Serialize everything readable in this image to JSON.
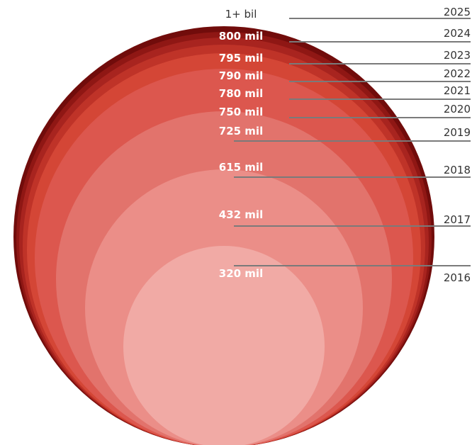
{
  "chart_data": {
    "type": "nested-bubble",
    "title": "",
    "series": [
      {
        "year": "2016",
        "label": "320 mil",
        "value": 320,
        "color": "#f1aaa5"
      },
      {
        "year": "2017",
        "label": "432 mil",
        "value": 432,
        "color": "#eb8e88"
      },
      {
        "year": "2018",
        "label": "615 mil",
        "value": 615,
        "color": "#e2736c"
      },
      {
        "year": "2019",
        "label": "725 mil",
        "value": 725,
        "color": "#dc574e"
      },
      {
        "year": "2020",
        "label": "750 mil",
        "value": 750,
        "color": "#d44636"
      },
      {
        "year": "2021",
        "label": "780 mil",
        "value": 780,
        "color": "#bf3328"
      },
      {
        "year": "2022",
        "label": "790 mil",
        "value": 790,
        "color": "#a8241f"
      },
      {
        "year": "2023",
        "label": "795 mil",
        "value": 795,
        "color": "#8f1714"
      },
      {
        "year": "2024",
        "label": "800 mil",
        "value": 800,
        "color": "#710c0b"
      },
      {
        "year": "2025",
        "label": "1+ bil",
        "value": 1000,
        "color": "#ffffff"
      }
    ]
  }
}
